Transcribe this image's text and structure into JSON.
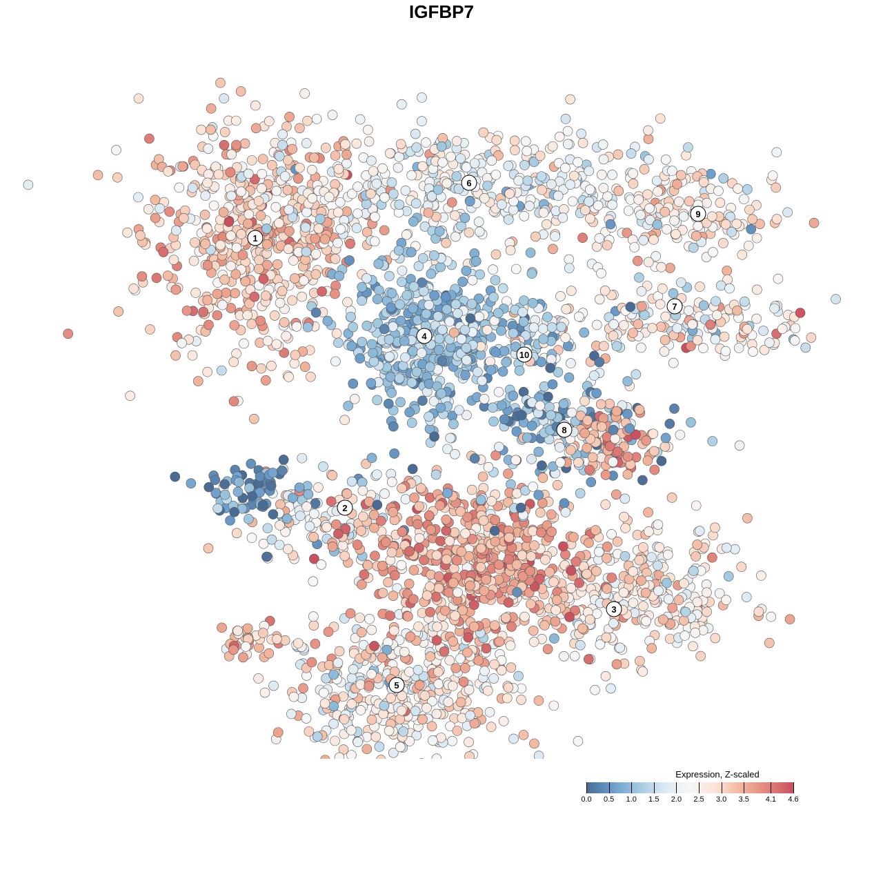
{
  "chart_data": {
    "type": "scatter",
    "title": "IGFBP7",
    "xlabel": "",
    "ylabel": "",
    "axes_visible": false,
    "grid": false,
    "legend": {
      "title": "Expression, Z-scaled",
      "placement": "bottom-right",
      "ticks": [
        "0.0",
        "0.5",
        "1.0",
        "1.5",
        "2.0",
        "2.5",
        "3.0",
        "3.5",
        "4.1",
        "4.6"
      ],
      "range": [
        0,
        4.6
      ],
      "colors": [
        "#4a6c94",
        "#6a9ccb",
        "#9fc8e0",
        "#dbe9f3",
        "#f7f7f7",
        "#fbe3d6",
        "#f2b49b",
        "#e1847a",
        "#c9515f"
      ]
    },
    "clusters": [
      {
        "label": "1",
        "center": [
          -27,
          29.5
        ],
        "spread": [
          8,
          9
        ],
        "n": 520,
        "mean_expr": 3.1,
        "sd_expr": 0.55
      },
      {
        "label": "6",
        "center": [
          4,
          36.5
        ],
        "spread": [
          17,
          4.5
        ],
        "n": 460,
        "mean_expr": 2.2,
        "sd_expr": 0.6
      },
      {
        "label": "9",
        "center": [
          34,
          32.5
        ],
        "spread": [
          7,
          3
        ],
        "n": 130,
        "mean_expr": 2.5,
        "sd_expr": 0.6
      },
      {
        "label": "7",
        "center": [
          34,
          17.5
        ],
        "spread": [
          11,
          3.5
        ],
        "n": 190,
        "mean_expr": 2.5,
        "sd_expr": 0.75
      },
      {
        "label": "4",
        "center": [
          -2.5,
          15
        ],
        "spread": [
          5.5,
          6
        ],
        "n": 380,
        "mean_expr": 1.1,
        "sd_expr": 0.45
      },
      {
        "label": "10",
        "center": [
          10,
          16
        ],
        "spread": [
          5,
          3
        ],
        "n": 110,
        "mean_expr": 1.5,
        "sd_expr": 0.8
      },
      {
        "label": "8",
        "center": [
          18,
          2
        ],
        "spread": [
          6,
          3.5
        ],
        "n": 130,
        "mean_expr": 1.0,
        "sd_expr": 0.7
      },
      {
        "label": "2",
        "center": [
          -16,
          -11.5
        ],
        "spread": [
          6.5,
          3.5
        ],
        "n": 140,
        "mean_expr": 2.2,
        "sd_expr": 0.9
      },
      {
        "label": "3",
        "center": [
          26,
          -22
        ],
        "spread": [
          9,
          5
        ],
        "n": 330,
        "mean_expr": 2.6,
        "sd_expr": 0.6
      },
      {
        "label": "5",
        "center": [
          -6,
          -36
        ],
        "spread": [
          8.5,
          5.5
        ],
        "n": 420,
        "mean_expr": 2.5,
        "sd_expr": 0.65
      }
    ],
    "unlabeled_groups": [
      {
        "center": [
          5,
          -17
        ],
        "spread": [
          9,
          6
        ],
        "n": 520,
        "mean_expr": 3.5,
        "sd_expr": 0.5
      },
      {
        "center": [
          25,
          0
        ],
        "spread": [
          3.5,
          2.5
        ],
        "n": 90,
        "mean_expr": 3.5,
        "sd_expr": 0.5
      },
      {
        "center": [
          -28,
          -7.5
        ],
        "spread": [
          3.5,
          2
        ],
        "n": 60,
        "mean_expr": 0.5,
        "sd_expr": 0.4
      },
      {
        "center": [
          -28,
          -29
        ],
        "spread": [
          3,
          1.3
        ],
        "n": 35,
        "mean_expr": 3.4,
        "sd_expr": 0.6
      },
      {
        "center": [
          10,
          1
        ],
        "spread": [
          14,
          8
        ],
        "n": 90,
        "mean_expr": 1.2,
        "sd_expr": 0.9
      }
    ],
    "label_positions": {
      "1": [
        -27,
        29.5
      ],
      "6": [
        4,
        37.5
      ],
      "9": [
        37.2,
        33
      ],
      "7": [
        33.8,
        19.6
      ],
      "4": [
        -2.5,
        15.3
      ],
      "10": [
        12,
        12.6
      ],
      "8": [
        17.8,
        1.7
      ],
      "2": [
        -14,
        -9.6
      ],
      "3": [
        25,
        -24.3
      ],
      "5": [
        -6.5,
        -35.3
      ]
    },
    "xlim": [
      -44,
      49
    ],
    "ylim": [
      -45,
      45
    ]
  }
}
